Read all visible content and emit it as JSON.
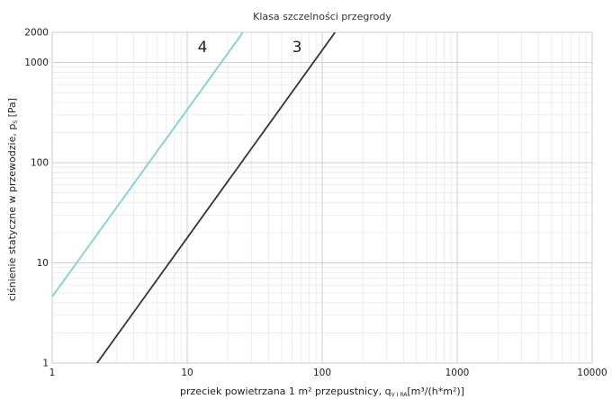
{
  "chart_data": {
    "type": "line",
    "title": "Klasa szczelności przegrody",
    "xlabel": "przeciek powietrzana 1 m² przepustnicy, q",
    "xlabel_sub": "V I RA",
    "xlabel_unit": "[m³/(h*m²)]",
    "ylabel": "ciśnienie statyczne w przewodzie, p",
    "ylabel_sub": "S",
    "ylabel_unit": " [Pa]",
    "x_scale": "log",
    "y_scale": "log",
    "xlim": [
      1,
      10000
    ],
    "ylim": [
      1,
      2000
    ],
    "x_ticks": [
      "1",
      "10",
      "100",
      "1000",
      "10000"
    ],
    "y_ticks": [
      "1",
      "10",
      "100",
      "1000",
      "2000"
    ],
    "grid": true,
    "series": [
      {
        "name": "4",
        "color": "#7ecfd6",
        "x": [
          1,
          25.9
        ],
        "y": [
          4.6,
          2000
        ]
      },
      {
        "name": "3",
        "color": "#333333",
        "x": [
          2.15,
          124.5
        ],
        "y": [
          1,
          2000
        ]
      }
    ]
  }
}
